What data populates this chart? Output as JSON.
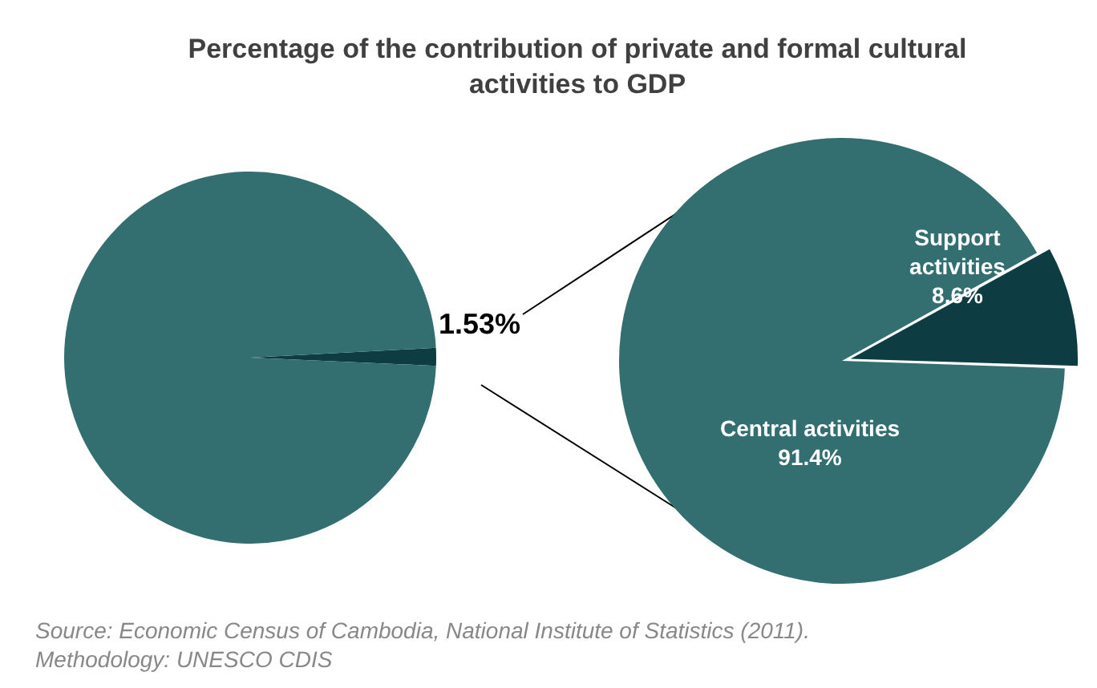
{
  "chart_data": [
    {
      "type": "pie",
      "title": "Percentage of the contribution of private and formal cultural activities to GDP",
      "categories": [
        null,
        null
      ],
      "values": [
        1.53,
        98.47
      ],
      "colors": [
        "#0d3d42",
        "#336e70"
      ],
      "value_labels": [
        "1.53%",
        null
      ],
      "legend": false,
      "annotations": [
        "Source: Economic Census of Cambodia, National Institute of Statistics (2011).",
        "Methodology: UNESCO CDIS"
      ]
    },
    {
      "type": "pie",
      "categories": [
        "Support activities",
        "Central activities"
      ],
      "values": [
        8.6,
        91.4
      ],
      "colors": [
        "#0d3d42",
        "#336e70"
      ],
      "value_labels": [
        "8.6%",
        "91.4%"
      ],
      "legend": false
    }
  ]
}
